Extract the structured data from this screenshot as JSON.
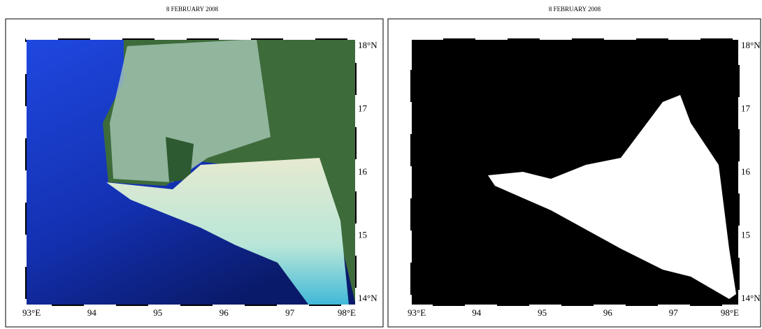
{
  "panels": [
    {
      "title": "8 FEBRUARY 2008",
      "lon_labels": [
        "93°E",
        "94",
        "95",
        "96",
        "97",
        "98°E"
      ],
      "lat_labels": [
        "18°N",
        "17",
        "16",
        "15",
        "14°N"
      ]
    },
    {
      "title": "8 FEBRUARY 2008",
      "lon_labels": [
        "93°E",
        "94",
        "95",
        "96",
        "97",
        "98°E"
      ],
      "lat_labels": [
        "18°N",
        "17",
        "16",
        "15",
        "14°N"
      ]
    }
  ]
}
